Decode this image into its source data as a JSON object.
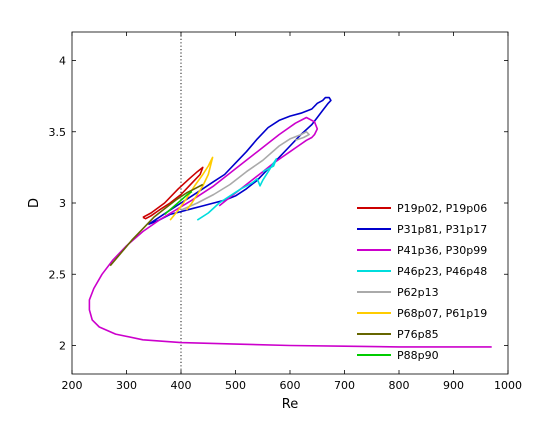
{
  "chart_data": {
    "type": "line",
    "title": "",
    "xlabel": "Re",
    "ylabel": "D",
    "xlim": [
      200,
      1000
    ],
    "ylim": [
      1.8,
      4.2
    ],
    "xticks": [
      200,
      300,
      400,
      500,
      600,
      700,
      800,
      900,
      1000
    ],
    "yticks": [
      2,
      2.5,
      3,
      3.5,
      4
    ],
    "xtick_labels": [
      "200",
      "300",
      "400",
      "500",
      "600",
      "700",
      "800",
      "900",
      "1000"
    ],
    "ytick_labels": [
      "2",
      "2.5",
      "3",
      "3.5",
      "4"
    ],
    "grid": false,
    "legend_position": "lower-right",
    "vline": {
      "x": 400,
      "style": "dotted",
      "color": "#000000"
    },
    "series": [
      {
        "name": "P19p02, P19p06",
        "color": "#cc0000",
        "x": [
          330,
          345,
          370,
          395,
          415,
          430,
          440,
          435,
          420,
          400,
          380,
          360,
          345,
          335,
          330
        ],
        "y": [
          2.9,
          2.93,
          3.0,
          3.1,
          3.17,
          3.22,
          3.25,
          3.2,
          3.14,
          3.06,
          3.0,
          2.95,
          2.91,
          2.89,
          2.9
        ]
      },
      {
        "name": "P31p81, P31p17",
        "color": "#0000cc",
        "x": [
          340,
          360,
          380,
          400,
          420,
          440,
          460,
          480,
          500,
          520,
          540,
          560,
          580,
          600,
          620,
          640,
          650,
          660,
          665,
          672,
          675,
          670,
          660,
          650,
          640,
          620,
          600,
          580,
          560,
          540,
          520,
          500,
          480,
          460,
          440,
          420,
          400,
          380,
          360,
          340
        ],
        "y": [
          2.85,
          2.9,
          2.95,
          3.0,
          3.05,
          3.1,
          3.15,
          3.2,
          3.28,
          3.36,
          3.45,
          3.53,
          3.58,
          3.61,
          3.63,
          3.66,
          3.7,
          3.72,
          3.74,
          3.74,
          3.72,
          3.7,
          3.65,
          3.6,
          3.55,
          3.48,
          3.4,
          3.32,
          3.24,
          3.16,
          3.1,
          3.05,
          3.02,
          3.0,
          2.98,
          2.96,
          2.94,
          2.92,
          2.88,
          2.85
        ]
      },
      {
        "name": "P41p36, P30p99",
        "color": "#cc00cc",
        "x": [
          970,
          900,
          800,
          700,
          600,
          500,
          400,
          330,
          280,
          250,
          237,
          232,
          232,
          240,
          255,
          275,
          300,
          330,
          360,
          390,
          420,
          460,
          500,
          540,
          580,
          610,
          630,
          645,
          650,
          645,
          640,
          630,
          615,
          600,
          585,
          570,
          550,
          530,
          510,
          490,
          470
        ],
        "y": [
          1.99,
          1.99,
          1.99,
          1.995,
          2.0,
          2.01,
          2.02,
          2.04,
          2.08,
          2.13,
          2.18,
          2.25,
          2.32,
          2.4,
          2.5,
          2.6,
          2.7,
          2.8,
          2.88,
          2.95,
          3.02,
          3.12,
          3.24,
          3.36,
          3.48,
          3.56,
          3.6,
          3.57,
          3.52,
          3.48,
          3.46,
          3.44,
          3.4,
          3.36,
          3.32,
          3.28,
          3.22,
          3.16,
          3.1,
          3.04,
          2.98
        ]
      },
      {
        "name": "P46p23, P46p48",
        "color": "#00dddd",
        "x": [
          430,
          450,
          470,
          490,
          510,
          530,
          540,
          545,
          550,
          560,
          570,
          575,
          570,
          560,
          550
        ],
        "y": [
          2.88,
          2.93,
          3.0,
          3.05,
          3.1,
          3.14,
          3.17,
          3.12,
          3.16,
          3.22,
          3.28,
          3.31,
          3.26,
          3.24,
          3.22
        ]
      },
      {
        "name": "P62p13",
        "color": "#aaaaaa",
        "x": [
          400,
          430,
          460,
          490,
          520,
          550,
          580,
          600,
          620,
          630,
          635,
          625,
          610
        ],
        "y": [
          2.95,
          3.0,
          3.06,
          3.13,
          3.22,
          3.3,
          3.4,
          3.45,
          3.48,
          3.5,
          3.48,
          3.46,
          3.44
        ]
      },
      {
        "name": "P68p07, P61p19",
        "color": "#ffcc00",
        "x": [
          380,
          395,
          410,
          425,
          440,
          450,
          458,
          450,
          440,
          430,
          420,
          410
        ],
        "y": [
          2.88,
          2.95,
          3.03,
          3.12,
          3.2,
          3.26,
          3.32,
          3.2,
          3.12,
          3.06,
          3.0,
          2.95
        ]
      },
      {
        "name": "P76p85",
        "color": "#666600",
        "x": [
          270,
          290,
          310,
          330,
          350,
          370,
          390,
          410,
          425,
          440
        ],
        "y": [
          2.56,
          2.65,
          2.74,
          2.82,
          2.9,
          2.96,
          3.02,
          3.07,
          3.1,
          3.13
        ]
      },
      {
        "name": "P88p90",
        "color": "#00cc00",
        "x": [
          370,
          385,
          400,
          412,
          420
        ],
        "y": [
          2.92,
          2.97,
          3.02,
          3.06,
          3.08
        ]
      }
    ]
  }
}
